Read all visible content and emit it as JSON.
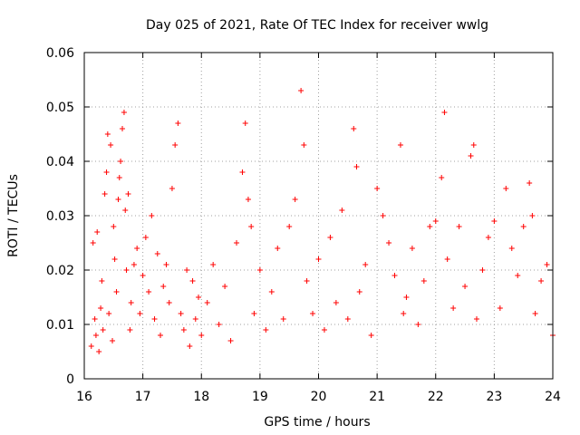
{
  "chart_data": {
    "type": "scatter",
    "title": "Day 025 of 2021, Rate Of TEC Index for receiver wwlg",
    "xlabel": "GPS time / hours",
    "ylabel": "ROTI / TECUs",
    "xlim": [
      16,
      24
    ],
    "ylim": [
      0,
      0.06
    ],
    "xticks": [
      16,
      17,
      18,
      19,
      20,
      21,
      22,
      23,
      24
    ],
    "yticks": [
      0,
      0.01,
      0.02,
      0.03,
      0.04,
      0.05,
      0.06
    ],
    "xtick_labels": [
      "16",
      "17",
      "18",
      "19",
      "20",
      "21",
      "22",
      "23",
      "24"
    ],
    "ytick_labels": [
      "0",
      "0.01",
      "0.02",
      "0.03",
      "0.04",
      "0.05",
      "0.06"
    ],
    "grid": true,
    "marker": "+",
    "color": "#ff0000",
    "series": [
      {
        "name": "ROTI",
        "note": "dense scatter, representative sample of visible points",
        "x": [
          16.12,
          16.15,
          16.18,
          16.2,
          16.22,
          16.25,
          16.28,
          16.3,
          16.32,
          16.35,
          16.38,
          16.4,
          16.42,
          16.45,
          16.48,
          16.5,
          16.52,
          16.55,
          16.58,
          16.6,
          16.62,
          16.65,
          16.68,
          16.7,
          16.72,
          16.75,
          16.78,
          16.8,
          16.85,
          16.9,
          16.95,
          17.0,
          17.05,
          17.1,
          17.15,
          17.2,
          17.25,
          17.3,
          17.35,
          17.4,
          17.45,
          17.5,
          17.55,
          17.6,
          17.65,
          17.7,
          17.75,
          17.8,
          17.85,
          17.9,
          17.95,
          18.0,
          18.1,
          18.2,
          18.3,
          18.4,
          18.5,
          18.6,
          18.7,
          18.75,
          18.8,
          18.85,
          18.9,
          19.0,
          19.1,
          19.2,
          19.3,
          19.4,
          19.5,
          19.6,
          19.7,
          19.75,
          19.8,
          19.9,
          20.0,
          20.1,
          20.2,
          20.3,
          20.4,
          20.5,
          20.6,
          20.65,
          20.7,
          20.8,
          20.9,
          21.0,
          21.1,
          21.2,
          21.3,
          21.4,
          21.45,
          21.5,
          21.6,
          21.7,
          21.8,
          21.9,
          22.0,
          22.1,
          22.15,
          22.2,
          22.3,
          22.4,
          22.5,
          22.6,
          22.65,
          22.7,
          22.8,
          22.9,
          23.0,
          23.1,
          23.2,
          23.3,
          23.4,
          23.5,
          23.6,
          23.65,
          23.7,
          23.8,
          23.9,
          24.0
        ],
        "y": [
          0.006,
          0.025,
          0.011,
          0.008,
          0.027,
          0.005,
          0.013,
          0.018,
          0.009,
          0.034,
          0.038,
          0.045,
          0.012,
          0.043,
          0.007,
          0.028,
          0.022,
          0.016,
          0.033,
          0.037,
          0.04,
          0.046,
          0.049,
          0.031,
          0.02,
          0.034,
          0.009,
          0.014,
          0.021,
          0.024,
          0.012,
          0.019,
          0.026,
          0.016,
          0.03,
          0.011,
          0.023,
          0.008,
          0.017,
          0.021,
          0.014,
          0.035,
          0.043,
          0.047,
          0.012,
          0.009,
          0.02,
          0.006,
          0.018,
          0.011,
          0.015,
          0.008,
          0.014,
          0.021,
          0.01,
          0.017,
          0.007,
          0.025,
          0.038,
          0.047,
          0.033,
          0.028,
          0.012,
          0.02,
          0.009,
          0.016,
          0.024,
          0.011,
          0.028,
          0.033,
          0.053,
          0.043,
          0.018,
          0.012,
          0.022,
          0.009,
          0.026,
          0.014,
          0.031,
          0.011,
          0.046,
          0.039,
          0.016,
          0.021,
          0.008,
          0.035,
          0.03,
          0.025,
          0.019,
          0.043,
          0.012,
          0.015,
          0.024,
          0.01,
          0.018,
          0.028,
          0.029,
          0.037,
          0.049,
          0.022,
          0.013,
          0.028,
          0.017,
          0.041,
          0.043,
          0.011,
          0.02,
          0.026,
          0.029,
          0.013,
          0.035,
          0.024,
          0.019,
          0.028,
          0.036,
          0.03,
          0.012,
          0.018,
          0.021,
          0.008
        ]
      }
    ]
  }
}
